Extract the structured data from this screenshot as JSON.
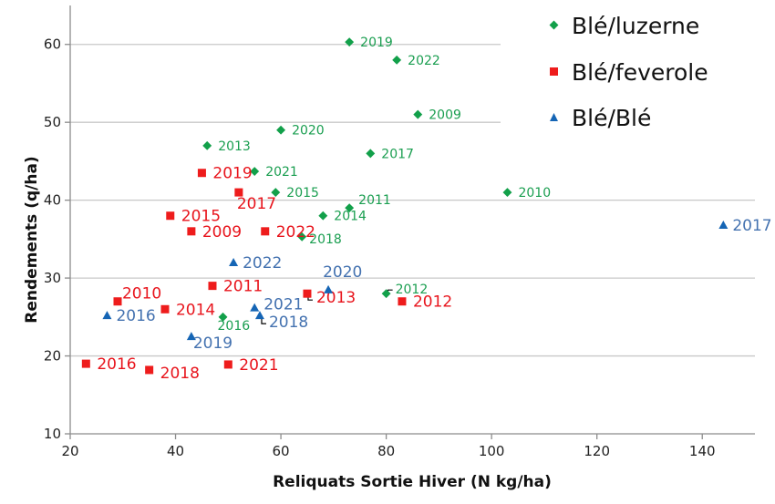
{
  "chart_data": {
    "type": "scatter",
    "title": "",
    "xlabel": "Reliquats Sortie Hiver (N kg/ha)",
    "ylabel": "Rendements (q/ha)",
    "xlim": [
      20,
      150
    ],
    "ylim": [
      10,
      65
    ],
    "xticks": [
      20,
      40,
      60,
      80,
      100,
      120,
      140
    ],
    "yticks": [
      10,
      20,
      30,
      40,
      50,
      60
    ],
    "grid": "horizontal",
    "legend_position": "top-right",
    "series": [
      {
        "name": "Blé/luzerne",
        "marker": "diamond",
        "color": "#12a04a",
        "label_color": "#1a9e50",
        "points": [
          {
            "x": 73,
            "y": 60.3,
            "label": "2019"
          },
          {
            "x": 82,
            "y": 58,
            "label": "2022"
          },
          {
            "x": 86,
            "y": 51,
            "label": "2009"
          },
          {
            "x": 60,
            "y": 49,
            "label": "2020"
          },
          {
            "x": 46,
            "y": 47,
            "label": "2013"
          },
          {
            "x": 77,
            "y": 46,
            "label": "2017"
          },
          {
            "x": 55,
            "y": 43.7,
            "label": "2021"
          },
          {
            "x": 59,
            "y": 41,
            "label": "2015"
          },
          {
            "x": 103,
            "y": 41,
            "label": "2010"
          },
          {
            "x": 73,
            "y": 39,
            "label": "2011"
          },
          {
            "x": 68,
            "y": 38,
            "label": "2014"
          },
          {
            "x": 64,
            "y": 35.3,
            "label": "2018"
          },
          {
            "x": 80,
            "y": 28,
            "label": "2012"
          },
          {
            "x": 49,
            "y": 25,
            "label": "2016"
          }
        ]
      },
      {
        "name": "Blé/feverole",
        "marker": "square",
        "color": "#ee1c1c",
        "label_color": "#e8141c",
        "points": [
          {
            "x": 45,
            "y": 43.5,
            "label": "2019"
          },
          {
            "x": 52,
            "y": 41,
            "label": "2017"
          },
          {
            "x": 39,
            "y": 38,
            "label": "2015"
          },
          {
            "x": 43,
            "y": 36,
            "label": "2009"
          },
          {
            "x": 57,
            "y": 36,
            "label": "2022"
          },
          {
            "x": 47,
            "y": 29,
            "label": "2011"
          },
          {
            "x": 65,
            "y": 28,
            "label": "2013"
          },
          {
            "x": 29,
            "y": 27,
            "label": "2010"
          },
          {
            "x": 83,
            "y": 27,
            "label": "2012"
          },
          {
            "x": 38,
            "y": 26,
            "label": "2014"
          },
          {
            "x": 23,
            "y": 19,
            "label": "2016"
          },
          {
            "x": 50,
            "y": 18.9,
            "label": "2021"
          },
          {
            "x": 35,
            "y": 18.2,
            "label": "2018"
          }
        ]
      },
      {
        "name": "Blé/Blé",
        "marker": "triangle",
        "color": "#1565b5",
        "label_color": "#4472b0",
        "points": [
          {
            "x": 144,
            "y": 36.8,
            "label": "2017"
          },
          {
            "x": 51,
            "y": 32,
            "label": "2022"
          },
          {
            "x": 69,
            "y": 28.5,
            "label": "2020"
          },
          {
            "x": 55,
            "y": 26.2,
            "label": "2021"
          },
          {
            "x": 56,
            "y": 25.2,
            "label": "2018"
          },
          {
            "x": 27,
            "y": 25.2,
            "label": "2016"
          },
          {
            "x": 43,
            "y": 22.5,
            "label": "2019"
          }
        ]
      }
    ]
  }
}
